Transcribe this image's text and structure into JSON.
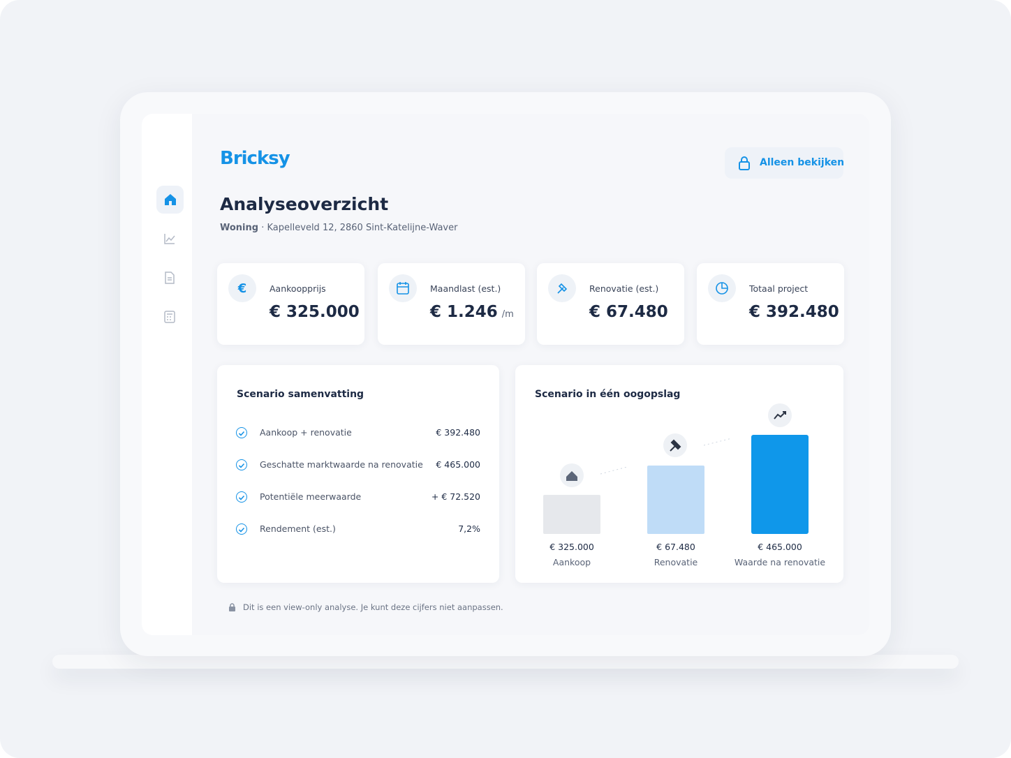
{
  "brand": "Bricksy",
  "header": {
    "button": "Alleen bekijken",
    "title": "Analyseoverzicht",
    "type": "Woning",
    "separator": "·",
    "address": "Kapelleveld 12, 2860 Sint-Katelijne-Waver"
  },
  "cards": [
    {
      "label": "Aankoopprijs",
      "value": "€ 325.000"
    },
    {
      "label": "Maandlast (est.)",
      "value": "€ 1.246",
      "unit": "/m"
    },
    {
      "label": "Renovatie (est.)",
      "value": "€ 67.480"
    },
    {
      "label": "Totaal project",
      "value": "€ 392.480"
    }
  ],
  "summary": {
    "title": "Scenario samenvatting",
    "rows": [
      {
        "label": "Aankoop + renovatie",
        "value": "€ 392.480"
      },
      {
        "label": "Geschatte marktwaarde na renovatie",
        "value": "€ 465.000"
      },
      {
        "label": "Potentiële meerwaarde",
        "value": "+ € 72.520"
      },
      {
        "label": "Rendement (est.)",
        "value": "7,2%"
      }
    ]
  },
  "glance": {
    "title": "Scenario in één oogopslag",
    "bars": [
      {
        "value": "€ 325.000",
        "label": "Aankoop"
      },
      {
        "value": "€ 67.480",
        "label": "Renovatie"
      },
      {
        "value": "€ 465.000",
        "label": "Waarde na renovatie"
      }
    ]
  },
  "footer": "Dit is een view-only analyse. Je kunt deze cijfers niet aanpassen."
}
